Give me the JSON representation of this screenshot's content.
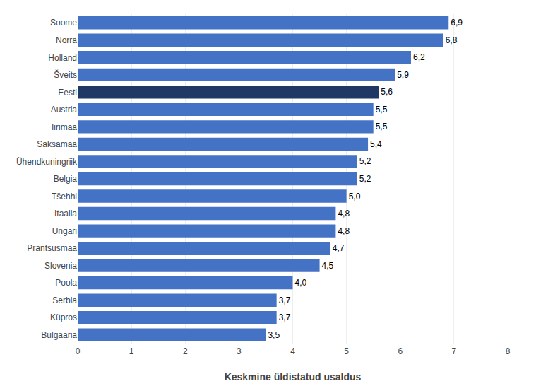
{
  "chart_data": {
    "type": "bar",
    "orientation": "horizontal",
    "categories": [
      "Bulgaaria",
      "Küpros",
      "Serbia",
      "Poola",
      "Slovenia",
      "Prantsusmaa",
      "Ungari",
      "Itaalia",
      "Tšehhi",
      "Belgia",
      "Ühendkuningriik",
      "Saksamaa",
      "Iirimaa",
      "Austria",
      "Eesti",
      "Šveits",
      "Holland",
      "Norra",
      "Soome"
    ],
    "values": [
      3.5,
      3.7,
      3.7,
      4.0,
      4.5,
      4.7,
      4.8,
      4.8,
      5.0,
      5.2,
      5.2,
      5.4,
      5.5,
      5.5,
      5.6,
      5.9,
      6.2,
      6.8,
      6.9
    ],
    "value_labels": [
      "3,5",
      "3,7",
      "3,7",
      "4,0",
      "4,5",
      "4,7",
      "4,8",
      "4,8",
      "5,0",
      "5,2",
      "5,2",
      "5,4",
      "5,5",
      "5,5",
      "5,6",
      "5,9",
      "6,2",
      "6,8",
      "6,9"
    ],
    "data_labels": true,
    "colors": [
      "#4472C4",
      "#4472C4",
      "#4472C4",
      "#4472C4",
      "#4472C4",
      "#4472C4",
      "#4472C4",
      "#4472C4",
      "#4472C4",
      "#4472C4",
      "#4472C4",
      "#4472C4",
      "#4472C4",
      "#4472C4",
      "#1F3864",
      "#4472C4",
      "#4472C4",
      "#4472C4",
      "#4472C4"
    ],
    "xlabel": "Keskmine üldistatud usaldus",
    "xlim": [
      0,
      8
    ],
    "xticks": [
      0,
      1,
      2,
      3,
      4,
      5,
      6,
      7,
      8
    ],
    "grid": true
  }
}
